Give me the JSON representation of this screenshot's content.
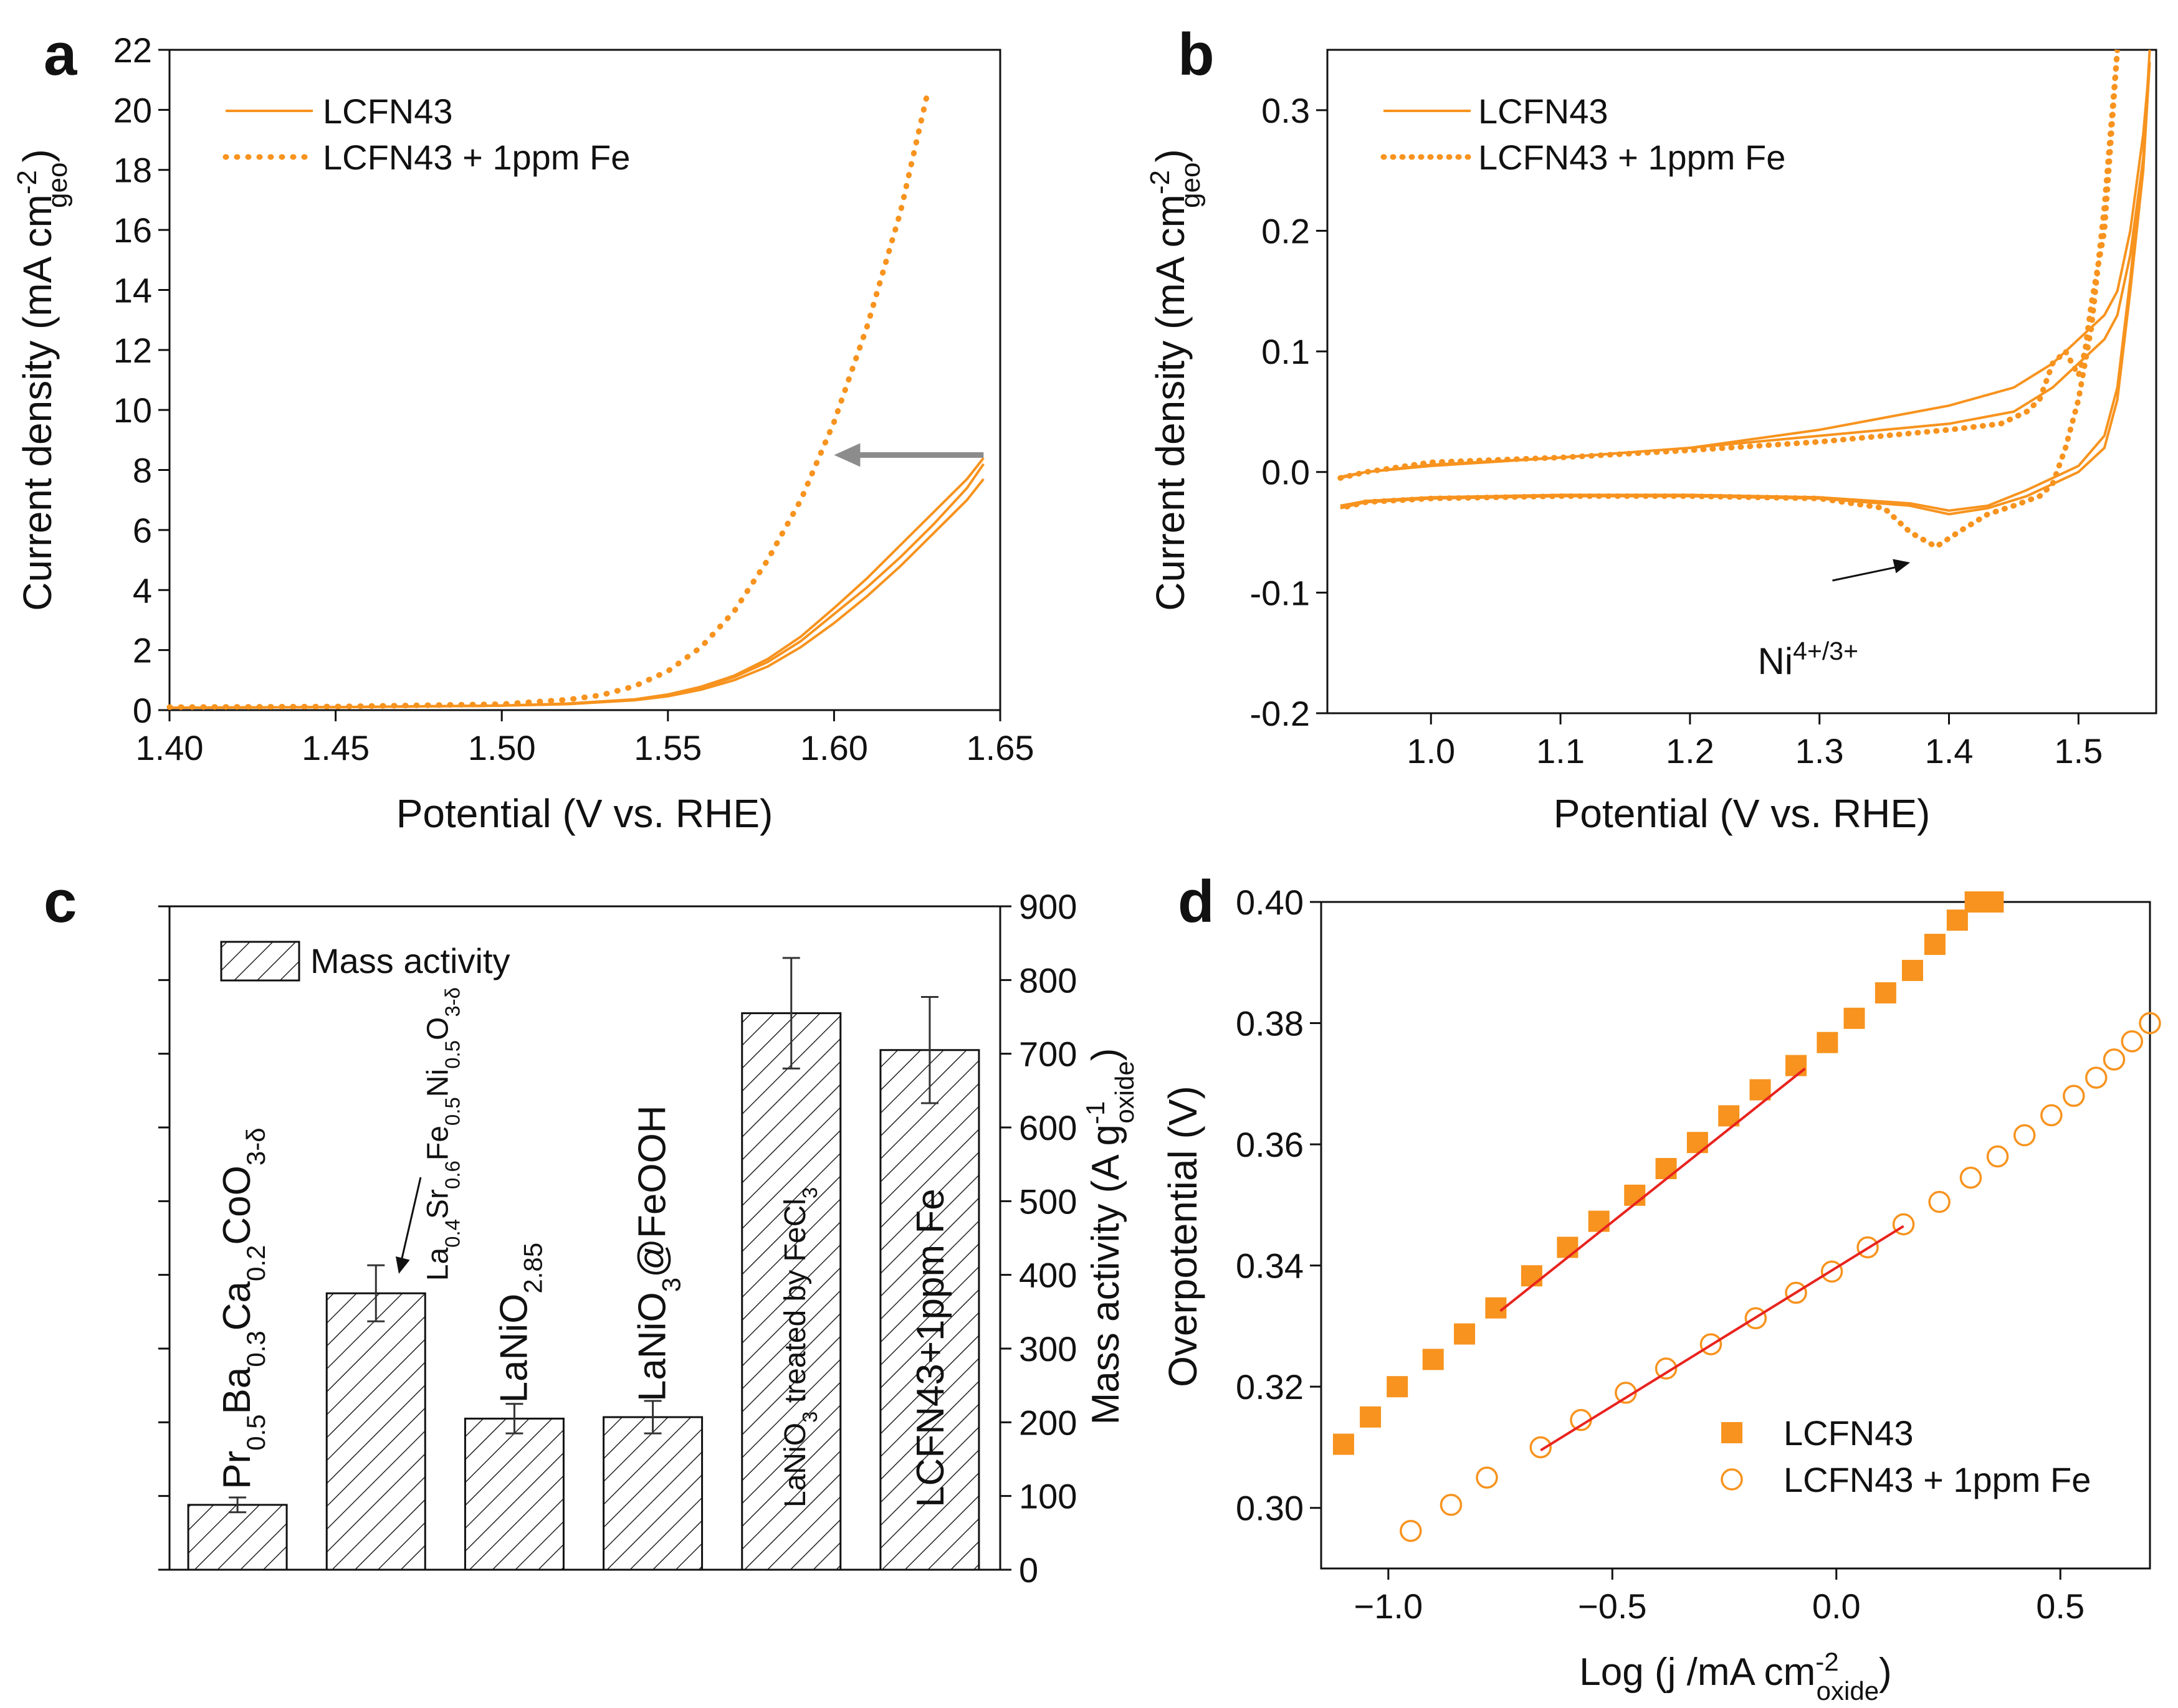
{
  "colors": {
    "orange": "#F7931E",
    "gray": "#8C8C8C",
    "red": "#E8231E",
    "axis": "#111111"
  },
  "panels": {
    "a": {
      "label": "a"
    },
    "b": {
      "label": "b"
    },
    "c": {
      "label": "c"
    },
    "d": {
      "label": "d"
    }
  },
  "chart_data": [
    {
      "panel": "a",
      "type": "line",
      "xlabel": "Potential (V vs. RHE)",
      "ylabel": "Current density",
      "ylabel_unit": "mA cm",
      "ylabel_sup": "-2",
      "ylabel_sub": "geo",
      "xlim": [
        1.4,
        1.65
      ],
      "ylim": [
        0,
        22
      ],
      "xticks": [
        "1.40",
        "1.45",
        "1.50",
        "1.55",
        "1.60",
        "1.65"
      ],
      "xtick_values": [
        1.4,
        1.45,
        1.5,
        1.55,
        1.6,
        1.65
      ],
      "yticks": [
        "0",
        "2",
        "4",
        "6",
        "8",
        "10",
        "12",
        "14",
        "16",
        "18",
        "20",
        "22"
      ],
      "ytick_values": [
        0,
        2,
        4,
        6,
        8,
        10,
        12,
        14,
        16,
        18,
        20,
        22
      ],
      "legend": [
        "LCFN43",
        "LCFN43 + 1ppm Fe"
      ],
      "series": [
        {
          "name": "LCFN43",
          "style": "solid",
          "x": [
            1.4,
            1.45,
            1.5,
            1.52,
            1.54,
            1.55,
            1.56,
            1.57,
            1.58,
            1.59,
            1.6,
            1.61,
            1.62,
            1.63,
            1.64,
            1.645
          ],
          "y": [
            0.08,
            0.1,
            0.15,
            0.2,
            0.35,
            0.5,
            0.75,
            1.1,
            1.6,
            2.3,
            3.2,
            4.1,
            5.1,
            6.2,
            7.4,
            8.2
          ]
        },
        {
          "name": "LCFN43",
          "style": "solid",
          "x": [
            1.4,
            1.45,
            1.5,
            1.52,
            1.54,
            1.55,
            1.56,
            1.57,
            1.58,
            1.59,
            1.6,
            1.61,
            1.62,
            1.63,
            1.64,
            1.645
          ],
          "y": [
            0.08,
            0.1,
            0.15,
            0.2,
            0.33,
            0.46,
            0.68,
            1.0,
            1.45,
            2.1,
            2.9,
            3.8,
            4.8,
            5.9,
            7.0,
            7.7
          ]
        },
        {
          "name": "LCFN43",
          "style": "solid",
          "x": [
            1.4,
            1.45,
            1.5,
            1.52,
            1.54,
            1.55,
            1.56,
            1.57,
            1.58,
            1.59,
            1.6,
            1.61,
            1.62,
            1.63,
            1.64,
            1.645
          ],
          "y": [
            0.08,
            0.1,
            0.15,
            0.22,
            0.36,
            0.52,
            0.78,
            1.15,
            1.7,
            2.45,
            3.4,
            4.4,
            5.5,
            6.6,
            7.7,
            8.4
          ]
        },
        {
          "name": "LCFN43 + 1ppm Fe",
          "style": "dotted",
          "x": [
            1.4,
            1.45,
            1.5,
            1.52,
            1.53,
            1.54,
            1.55,
            1.56,
            1.57,
            1.58,
            1.59,
            1.6,
            1.61,
            1.62,
            1.628
          ],
          "y": [
            0.1,
            0.12,
            0.2,
            0.35,
            0.5,
            0.8,
            1.3,
            2.1,
            3.3,
            5.0,
            7.0,
            9.6,
            12.8,
            16.6,
            20.5
          ]
        }
      ],
      "annotation": {
        "type": "arrow",
        "from": [
          1.645,
          8.5
        ],
        "to": [
          1.6,
          8.5
        ]
      }
    },
    {
      "panel": "b",
      "type": "line",
      "xlabel": "Potential (V vs. RHE)",
      "ylabel": "Current density",
      "ylabel_unit": "mA cm",
      "ylabel_sup": "-2",
      "ylabel_sub": "geo",
      "xlim": [
        0.92,
        1.56
      ],
      "ylim": [
        -0.2,
        0.35
      ],
      "xticks": [
        "1.0",
        "1.1",
        "1.2",
        "1.3",
        "1.4",
        "1.5"
      ],
      "xtick_values": [
        1.0,
        1.1,
        1.2,
        1.3,
        1.4,
        1.5
      ],
      "yticks": [
        "-0.2",
        "-0.1",
        "0.0",
        "0.1",
        "0.2",
        "0.3"
      ],
      "ytick_values": [
        -0.2,
        -0.1,
        0.0,
        0.1,
        0.2,
        0.3
      ],
      "legend": [
        "LCFN43",
        "LCFN43 + 1ppm Fe"
      ],
      "series": [
        {
          "name": "LCFN43",
          "style": "solid",
          "x": [
            0.93,
            0.95,
            1.0,
            1.1,
            1.2,
            1.3,
            1.35,
            1.4,
            1.45,
            1.48,
            1.5,
            1.52,
            1.53,
            1.54,
            1.55,
            1.555,
            1.555,
            1.55,
            1.54,
            1.53,
            1.52,
            1.5,
            1.48,
            1.46,
            1.43,
            1.4,
            1.37,
            1.3,
            1.2,
            1.1,
            1.0,
            0.95,
            0.93
          ],
          "y": [
            -0.005,
            0.0,
            0.005,
            0.012,
            0.02,
            0.035,
            0.045,
            0.055,
            0.07,
            0.09,
            0.11,
            0.13,
            0.15,
            0.2,
            0.28,
            0.34,
            0.34,
            0.25,
            0.15,
            0.06,
            0.02,
            -0.0,
            -0.01,
            -0.02,
            -0.03,
            -0.035,
            -0.028,
            -0.022,
            -0.02,
            -0.02,
            -0.022,
            -0.025,
            -0.03
          ]
        },
        {
          "name": "LCFN43",
          "style": "solid",
          "x": [
            0.93,
            0.95,
            1.0,
            1.1,
            1.2,
            1.3,
            1.35,
            1.4,
            1.45,
            1.48,
            1.5,
            1.52,
            1.53,
            1.54,
            1.55,
            1.555,
            1.555,
            1.55,
            1.54,
            1.53,
            1.52,
            1.5,
            1.48,
            1.46,
            1.43,
            1.4,
            1.37,
            1.3,
            1.2,
            1.1,
            1.0,
            0.95,
            0.93
          ],
          "y": [
            -0.004,
            0.0,
            0.006,
            0.012,
            0.02,
            0.03,
            0.035,
            0.04,
            0.05,
            0.07,
            0.09,
            0.11,
            0.13,
            0.18,
            0.26,
            0.35,
            0.35,
            0.26,
            0.16,
            0.07,
            0.03,
            0.005,
            -0.005,
            -0.015,
            -0.028,
            -0.032,
            -0.026,
            -0.021,
            -0.019,
            -0.019,
            -0.021,
            -0.024,
            -0.028
          ]
        },
        {
          "name": "LCFN43 + 1ppm Fe",
          "style": "dotted",
          "x": [
            0.93,
            0.95,
            1.0,
            1.1,
            1.2,
            1.3,
            1.35,
            1.4,
            1.44,
            1.46,
            1.47,
            1.48,
            1.49,
            1.5,
            1.505,
            1.51,
            1.52,
            1.53,
            1.53,
            1.52,
            1.51,
            1.5,
            1.49,
            1.48,
            1.47,
            1.45,
            1.43,
            1.41,
            1.39,
            1.37,
            1.35,
            1.3,
            1.2,
            1.1,
            1.0,
            0.95,
            0.93
          ],
          "y": [
            -0.005,
            0.0,
            0.008,
            0.012,
            0.018,
            0.025,
            0.03,
            0.035,
            0.04,
            0.05,
            0.06,
            0.09,
            0.1,
            0.08,
            0.1,
            0.14,
            0.2,
            0.35,
            0.35,
            0.22,
            0.12,
            0.06,
            0.02,
            -0.01,
            -0.02,
            -0.028,
            -0.035,
            -0.048,
            -0.062,
            -0.05,
            -0.03,
            -0.022,
            -0.02,
            -0.02,
            -0.022,
            -0.025,
            -0.03
          ]
        }
      ],
      "annotation": {
        "type": "arrow",
        "text": "Ni",
        "text_sup": "4+/3+",
        "from": [
          1.31,
          -0.09
        ],
        "to": [
          1.37,
          -0.075
        ]
      }
    },
    {
      "panel": "c",
      "type": "bar",
      "ylabel": "Mass activity",
      "ylabel_unit": "A g",
      "ylabel_sup": "-1",
      "ylabel_sub": "oxide",
      "ylim": [
        0,
        900
      ],
      "yticks": [
        "0",
        "100",
        "200",
        "300",
        "400",
        "500",
        "600",
        "700",
        "800",
        "900"
      ],
      "ytick_values": [
        0,
        100,
        200,
        300,
        400,
        500,
        600,
        700,
        800,
        900
      ],
      "legend": [
        "Mass activity"
      ],
      "categories": [
        "Pr0.5Ba0.3Ca0.2CoO3-δ",
        "La0.4Sr0.6Fe0.5Ni0.5O3-δ",
        "LaNiO2.85",
        "LaNiO3@FeOOH",
        "LaNiO3 treated by FeCl3",
        "LCFN43+1ppm Fe"
      ],
      "values": [
        88,
        375,
        205,
        207,
        755,
        705
      ],
      "errors": [
        10,
        38,
        20,
        22,
        75,
        72
      ],
      "bar_labels": [
        {
          "parts": [
            [
              "Pr",
              ""
            ],
            [
              "0.5",
              "sub"
            ],
            [
              "Ba",
              ""
            ],
            [
              "0.3",
              "sub"
            ],
            [
              "Ca",
              ""
            ],
            [
              "0.2",
              "sub"
            ],
            [
              "CoO",
              ""
            ],
            [
              "3-δ",
              "sub"
            ]
          ]
        },
        {
          "parts": [
            [
              "La",
              ""
            ],
            [
              "0.4",
              "sub"
            ],
            [
              "Sr",
              ""
            ],
            [
              "0.6",
              "sub"
            ],
            [
              "Fe",
              ""
            ],
            [
              "0.5",
              "sub"
            ],
            [
              "Ni",
              ""
            ],
            [
              "0.5",
              "sub"
            ],
            [
              "O",
              ""
            ],
            [
              "3-δ",
              "sub"
            ]
          ]
        },
        {
          "parts": [
            [
              "LaNiO",
              ""
            ],
            [
              "2.85",
              "sub"
            ]
          ]
        },
        {
          "parts": [
            [
              "LaNiO",
              ""
            ],
            [
              "3",
              "sub"
            ],
            [
              "@FeOOH",
              ""
            ]
          ]
        },
        {
          "parts": [
            [
              "LaNiO",
              ""
            ],
            [
              "3",
              "sub"
            ],
            [
              " treated by FeCl",
              ""
            ],
            [
              "3",
              "sub"
            ]
          ]
        },
        {
          "parts": [
            [
              "LCFN43+1ppm Fe",
              ""
            ]
          ]
        }
      ]
    },
    {
      "panel": "d",
      "type": "scatter",
      "xlabel": "Log (j /mA cm",
      "xlabel_sup": "-2",
      "xlabel_sub": "oxide",
      "xlabel_end": ")",
      "ylabel": "Overpotential (V)",
      "xlim": [
        -1.15,
        0.7
      ],
      "ylim": [
        0.29,
        0.4
      ],
      "xticks": [
        "−1.0",
        "−0.5",
        "0.0",
        "0.5"
      ],
      "xtick_values": [
        -1.0,
        -0.5,
        0.0,
        0.5
      ],
      "yticks": [
        "0.30",
        "0.32",
        "0.34",
        "0.36",
        "0.38",
        "0.40"
      ],
      "ytick_values": [
        0.3,
        0.32,
        0.34,
        0.36,
        0.38,
        0.4
      ],
      "legend": [
        "LCFN43",
        "LCFN43 + 1ppm Fe"
      ],
      "series": [
        {
          "name": "LCFN43",
          "marker": "square",
          "x": [
            -1.1,
            -1.04,
            -0.98,
            -0.9,
            -0.83,
            -0.76,
            -0.68,
            -0.6,
            -0.53,
            -0.45,
            -0.38,
            -0.31,
            -0.24,
            -0.17,
            -0.09,
            -0.02,
            0.04,
            0.11,
            0.17,
            0.22,
            0.27,
            0.31,
            0.35
          ],
          "y": [
            0.3105,
            0.315,
            0.32,
            0.3245,
            0.3287,
            0.333,
            0.3383,
            0.343,
            0.3473,
            0.3516,
            0.356,
            0.3603,
            0.3647,
            0.369,
            0.373,
            0.3768,
            0.3808,
            0.385,
            0.3887,
            0.393,
            0.397,
            0.4,
            0.4
          ]
        },
        {
          "name": "LCFN43 + 1ppm Fe",
          "marker": "circle",
          "x": [
            -0.95,
            -0.86,
            -0.78,
            -0.66,
            -0.57,
            -0.47,
            -0.38,
            -0.28,
            -0.18,
            -0.09,
            -0.01,
            0.07,
            0.15,
            0.23,
            0.3,
            0.36,
            0.42,
            0.48,
            0.53,
            0.58,
            0.62,
            0.66,
            0.7
          ],
          "y": [
            0.2962,
            0.3005,
            0.305,
            0.31,
            0.3145,
            0.319,
            0.323,
            0.327,
            0.3313,
            0.3355,
            0.339,
            0.343,
            0.3468,
            0.3505,
            0.3545,
            0.358,
            0.3615,
            0.3648,
            0.368,
            0.371,
            0.374,
            0.377,
            0.38
          ]
        }
      ],
      "fits": [
        {
          "x": [
            -0.75,
            -0.07
          ],
          "y": [
            0.3325,
            0.3725
          ]
        },
        {
          "x": [
            -0.66,
            0.15
          ],
          "y": [
            0.3095,
            0.3465
          ]
        }
      ]
    }
  ]
}
